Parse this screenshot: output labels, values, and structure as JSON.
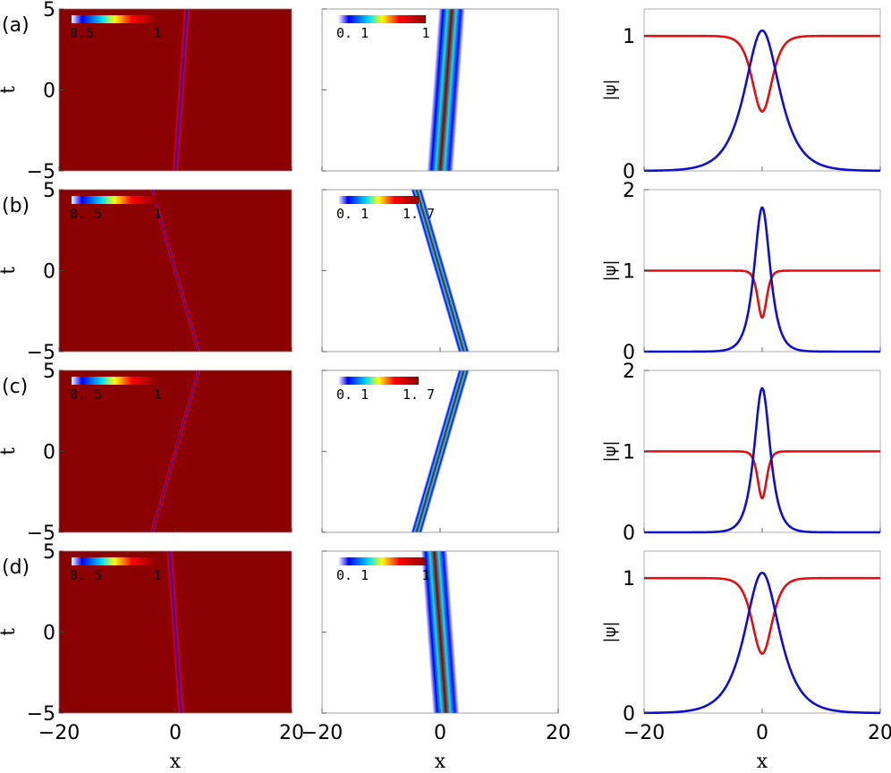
{
  "figure": {
    "panel_labels": [
      "(a)",
      "(b)",
      "(c)",
      "(d)"
    ],
    "xlabel": "x",
    "ylabel_map": "t",
    "ylabel_profile": "|ψ|",
    "x_ticks": [
      "−20",
      "0",
      "20"
    ],
    "t_ticks": [
      "5",
      "0",
      "−5"
    ]
  },
  "colors": {
    "dark_field": "#8b0000",
    "bright_field": "#ff0000",
    "line_red": "#e01010",
    "line_blue": "#1010cc"
  },
  "chart_data": [
    {
      "row": "a",
      "type": "heatmap",
      "field": "dark",
      "xlim": [
        -20,
        20
      ],
      "tlim": [
        -5,
        5
      ],
      "x_at_t_minus5": 0.0,
      "x_at_t_plus5": 2.0,
      "width": 1.5,
      "colorbar": {
        "min_label": "0.5",
        "max_label": "1"
      }
    },
    {
      "row": "a",
      "type": "heatmap",
      "field": "bright",
      "xlim": [
        -20,
        20
      ],
      "tlim": [
        -5,
        5
      ],
      "x_at_t_minus5": 0.0,
      "x_at_t_plus5": 2.0,
      "width": 3.0,
      "colorbar": {
        "min_label": "0. 1",
        "max_label": "1"
      }
    },
    {
      "row": "a",
      "type": "line",
      "xlim": [
        -20,
        20
      ],
      "ylim": [
        0,
        1.2
      ],
      "yticks": [
        "0",
        "1"
      ],
      "series": [
        {
          "color": "red",
          "shape": "dark",
          "background": 1.0,
          "dip": 0.44,
          "width": 2.2
        },
        {
          "color": "blue",
          "shape": "bright",
          "amplitude": 1.04,
          "width": 2.6
        }
      ]
    },
    {
      "row": "b",
      "type": "heatmap",
      "field": "dark",
      "xlim": [
        -20,
        20
      ],
      "tlim": [
        -5,
        5
      ],
      "x_at_t_minus5": 4.0,
      "x_at_t_plus5": -4.0,
      "width": 0.9,
      "colorbar": {
        "min_label": "0. 5",
        "max_label": "1"
      }
    },
    {
      "row": "b",
      "type": "heatmap",
      "field": "bright",
      "xlim": [
        -20,
        20
      ],
      "tlim": [
        -5,
        5
      ],
      "x_at_t_minus5": 4.0,
      "x_at_t_plus5": -4.0,
      "width": 1.3,
      "colorbar": {
        "min_label": "0. 1",
        "max_label": "1. 7"
      }
    },
    {
      "row": "b",
      "type": "line",
      "xlim": [
        -20,
        20
      ],
      "ylim": [
        0,
        2
      ],
      "yticks": [
        "0",
        "1",
        "2"
      ],
      "series": [
        {
          "color": "red",
          "shape": "dark",
          "background": 1.0,
          "dip": 0.42,
          "width": 1.0
        },
        {
          "color": "blue",
          "shape": "bright",
          "amplitude": 1.78,
          "width": 1.2
        }
      ]
    },
    {
      "row": "c",
      "type": "heatmap",
      "field": "dark",
      "xlim": [
        -20,
        20
      ],
      "tlim": [
        -5,
        5
      ],
      "x_at_t_minus5": -4.0,
      "x_at_t_plus5": 4.0,
      "width": 0.9,
      "colorbar": {
        "min_label": "0. 5",
        "max_label": "1"
      }
    },
    {
      "row": "c",
      "type": "heatmap",
      "field": "bright",
      "xlim": [
        -20,
        20
      ],
      "tlim": [
        -5,
        5
      ],
      "x_at_t_minus5": -4.0,
      "x_at_t_plus5": 4.0,
      "width": 1.3,
      "colorbar": {
        "min_label": "0. 1",
        "max_label": "1. 7"
      }
    },
    {
      "row": "c",
      "type": "line",
      "xlim": [
        -20,
        20
      ],
      "ylim": [
        0,
        2
      ],
      "yticks": [
        "0",
        "1",
        "2"
      ],
      "series": [
        {
          "color": "red",
          "shape": "dark",
          "background": 1.0,
          "dip": 0.42,
          "width": 1.0
        },
        {
          "color": "blue",
          "shape": "bright",
          "amplitude": 1.78,
          "width": 1.2
        }
      ]
    },
    {
      "row": "d",
      "type": "heatmap",
      "field": "dark",
      "xlim": [
        -20,
        20
      ],
      "tlim": [
        -5,
        5
      ],
      "x_at_t_minus5": 1.0,
      "x_at_t_plus5": -1.0,
      "width": 1.5,
      "colorbar": {
        "min_label": "0. 5",
        "max_label": "1"
      }
    },
    {
      "row": "d",
      "type": "heatmap",
      "field": "bright",
      "xlim": [
        -20,
        20
      ],
      "tlim": [
        -5,
        5
      ],
      "x_at_t_minus5": 1.0,
      "x_at_t_plus5": -1.0,
      "width": 3.0,
      "colorbar": {
        "min_label": "0. 1",
        "max_label": "1"
      }
    },
    {
      "row": "d",
      "type": "line",
      "xlim": [
        -20,
        20
      ],
      "ylim": [
        0,
        1.2
      ],
      "yticks": [
        "0",
        "1"
      ],
      "series": [
        {
          "color": "red",
          "shape": "dark",
          "background": 1.0,
          "dip": 0.44,
          "width": 2.2
        },
        {
          "color": "blue",
          "shape": "bright",
          "amplitude": 1.04,
          "width": 2.6
        }
      ]
    }
  ]
}
